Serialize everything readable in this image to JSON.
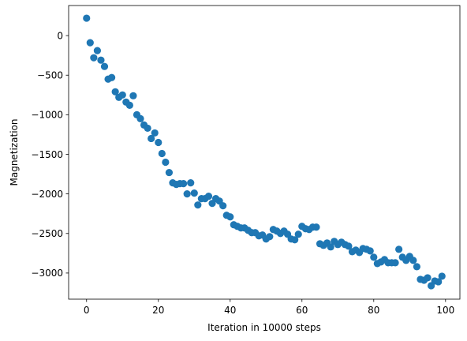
{
  "chart_data": {
    "type": "scatter",
    "title": "",
    "xlabel": "Iteration in 10000 steps",
    "ylabel": "Magnetization",
    "xlim": [
      -5,
      104
    ],
    "ylim": [
      -3330,
      380
    ],
    "x_ticks": [
      0,
      20,
      40,
      60,
      80,
      100
    ],
    "y_ticks": [
      0,
      -500,
      -1000,
      -1500,
      -2000,
      -2500,
      -3000
    ],
    "x_tick_labels": [
      "0",
      "20",
      "40",
      "60",
      "80",
      "100"
    ],
    "y_tick_labels": [
      "0",
      "−500",
      "−1000",
      "−1500",
      "−2000",
      "−2500",
      "−3000"
    ],
    "grid": false,
    "marker_color": "#1f77b4",
    "series": [
      {
        "x": [
          0,
          1,
          2,
          3,
          4,
          5,
          6,
          7,
          8,
          9,
          10,
          11,
          12,
          13,
          14,
          15,
          16,
          17,
          18,
          19,
          20,
          21,
          22,
          23,
          24,
          25,
          26,
          27,
          28,
          29,
          30,
          31,
          32,
          33,
          34,
          35,
          36,
          37,
          38,
          39,
          40,
          41,
          42,
          43,
          44,
          45,
          46,
          47,
          48,
          49,
          50,
          51,
          52,
          53,
          54,
          55,
          56,
          57,
          58,
          59,
          60,
          61,
          62,
          63,
          64,
          65,
          66,
          67,
          68,
          69,
          70,
          71,
          72,
          73,
          74,
          75,
          76,
          77,
          78,
          79,
          80,
          81,
          82,
          83,
          84,
          85,
          86,
          87,
          88,
          89,
          90,
          91,
          92,
          93,
          94,
          95,
          96,
          97,
          98,
          99
        ],
        "y": [
          220,
          -90,
          -280,
          -190,
          -310,
          -390,
          -550,
          -530,
          -710,
          -780,
          -750,
          -840,
          -880,
          -760,
          -1000,
          -1050,
          -1130,
          -1170,
          -1300,
          -1230,
          -1350,
          -1490,
          -1600,
          -1730,
          -1860,
          -1880,
          -1870,
          -1870,
          -2000,
          -1860,
          -1990,
          -2140,
          -2060,
          -2060,
          -2030,
          -2120,
          -2060,
          -2090,
          -2150,
          -2270,
          -2290,
          -2390,
          -2410,
          -2430,
          -2430,
          -2460,
          -2490,
          -2490,
          -2530,
          -2520,
          -2570,
          -2540,
          -2450,
          -2470,
          -2500,
          -2470,
          -2510,
          -2570,
          -2580,
          -2510,
          -2410,
          -2440,
          -2450,
          -2420,
          -2420,
          -2630,
          -2650,
          -2620,
          -2670,
          -2600,
          -2640,
          -2610,
          -2640,
          -2660,
          -2730,
          -2710,
          -2740,
          -2690,
          -2700,
          -2720,
          -2800,
          -2880,
          -2860,
          -2830,
          -2870,
          -2870,
          -2870,
          -2700,
          -2800,
          -2840,
          -2790,
          -2840,
          -2920,
          -3080,
          -3090,
          -3060,
          -3160,
          -3100,
          -3110,
          -3040
        ]
      }
    ]
  }
}
